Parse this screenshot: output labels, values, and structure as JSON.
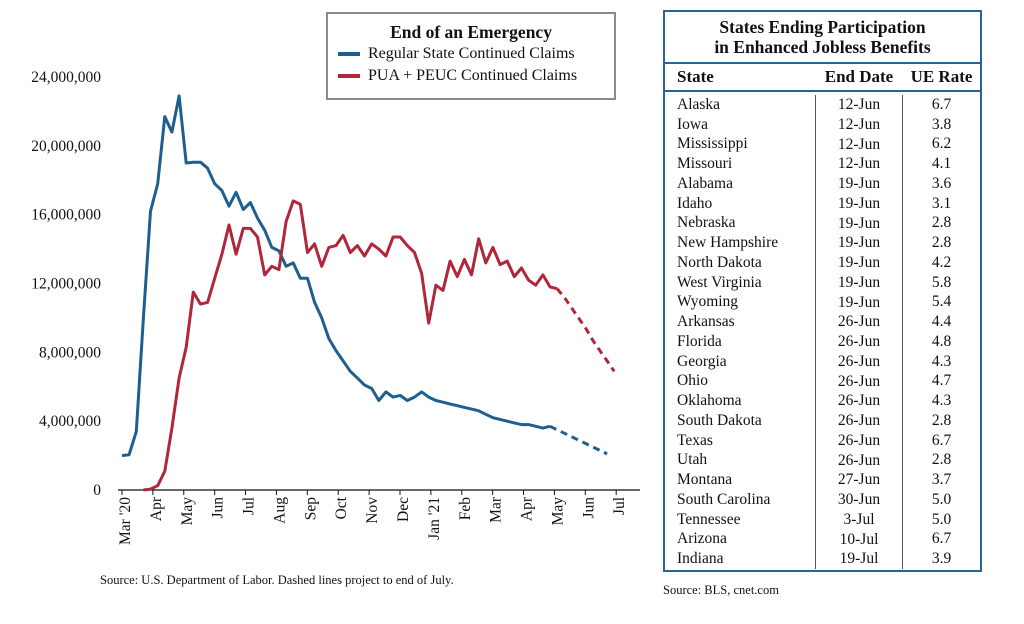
{
  "chart_data": {
    "type": "line",
    "title": "End of an Emergency",
    "x_labels": [
      "Mar '20",
      "Apr",
      "May",
      "Jun",
      "Jul",
      "Aug",
      "Sep",
      "Oct",
      "Nov",
      "Dec",
      "Jan '21",
      "Feb",
      "Mar",
      "Apr",
      "May",
      "Jun",
      "Jul"
    ],
    "y_ticks": [
      "0",
      "4,000,000",
      "8,000,000",
      "12,000,000",
      "16,000,000",
      "20,000,000",
      "24,000,000"
    ],
    "ylim": [
      0,
      24000000
    ],
    "legend_placement": "top",
    "series": [
      {
        "name": "Regular State Continued Claims",
        "color": "#1f5f8f",
        "values": [
          2000000,
          2050000,
          3400000,
          10000000,
          16200000,
          17800000,
          21700000,
          20800000,
          22900000,
          19000000,
          19050000,
          19050000,
          18700000,
          17800000,
          17400000,
          16500000,
          17300000,
          16300000,
          16700000,
          15800000,
          15100000,
          14100000,
          13900000,
          13000000,
          13200000,
          12300000,
          12300000,
          10900000,
          10000000,
          8800000,
          8100000,
          7500000,
          6900000,
          6500000,
          6100000,
          5900000,
          5200000,
          5700000,
          5400000,
          5500000,
          5200000,
          5400000,
          5700000,
          5400000,
          5200000,
          5100000,
          5000000,
          4900000,
          4800000,
          4700000,
          4600000,
          4400000,
          4200000,
          4100000,
          4000000,
          3900000,
          3800000,
          3800000,
          3700000,
          3600000,
          3700000
        ],
        "projection": [
          3700000,
          3500000,
          3300000,
          3100000,
          2900000,
          2700000,
          2500000,
          2300000,
          2100000
        ]
      },
      {
        "name": "PUA + PEUC Continued Claims",
        "color": "#b0263a",
        "start_index": 3,
        "values": [
          0,
          50000,
          250000,
          1100000,
          3600000,
          6500000,
          8300000,
          11500000,
          10800000,
          10900000,
          12300000,
          13700000,
          15400000,
          13700000,
          15200000,
          15200000,
          14700000,
          12500000,
          13000000,
          12800000,
          15600000,
          16800000,
          16600000,
          13800000,
          14300000,
          13000000,
          14100000,
          14200000,
          14800000,
          13800000,
          14200000,
          13600000,
          14300000,
          14000000,
          13600000,
          14700000,
          14700000,
          14200000,
          13800000,
          12600000,
          9700000,
          11900000,
          11600000,
          13300000,
          12400000,
          13400000,
          12500000,
          14600000,
          13200000,
          14100000,
          13100000,
          13300000,
          12400000,
          12900000,
          12200000,
          11900000,
          12500000,
          11800000,
          11700000
        ],
        "projection": [
          11700000,
          11200000,
          10600000,
          10000000,
          9400000,
          8700000,
          8100000,
          7500000,
          6900000
        ]
      }
    ]
  },
  "legend": {
    "title": "End of an Emergency",
    "items": [
      {
        "label": "Regular State Continued Claims",
        "color": "#1f5f8f"
      },
      {
        "label": "PUA + PEUC Continued Claims",
        "color": "#b0263a"
      }
    ]
  },
  "chart_source": "Source: U.S. Department of Labor. Dashed lines project to end of July.",
  "table": {
    "title_line1": "States Ending Participation",
    "title_line2": "in Enhanced Jobless Benefits",
    "headers": {
      "state": "State",
      "end_date": "End Date",
      "ue_rate": "UE Rate"
    },
    "rows": [
      {
        "state": "Alaska",
        "end_date": "12-Jun",
        "ue_rate": "6.7"
      },
      {
        "state": "Iowa",
        "end_date": "12-Jun",
        "ue_rate": "3.8"
      },
      {
        "state": "Mississippi",
        "end_date": "12-Jun",
        "ue_rate": "6.2"
      },
      {
        "state": "Missouri",
        "end_date": "12-Jun",
        "ue_rate": "4.1"
      },
      {
        "state": "Alabama",
        "end_date": "19-Jun",
        "ue_rate": "3.6"
      },
      {
        "state": "Idaho",
        "end_date": "19-Jun",
        "ue_rate": "3.1"
      },
      {
        "state": "Nebraska",
        "end_date": "19-Jun",
        "ue_rate": "2.8"
      },
      {
        "state": "New Hampshire",
        "end_date": "19-Jun",
        "ue_rate": "2.8"
      },
      {
        "state": "North Dakota",
        "end_date": "19-Jun",
        "ue_rate": "4.2"
      },
      {
        "state": "West Virginia",
        "end_date": "19-Jun",
        "ue_rate": "5.8"
      },
      {
        "state": "Wyoming",
        "end_date": "19-Jun",
        "ue_rate": "5.4"
      },
      {
        "state": "Arkansas",
        "end_date": "26-Jun",
        "ue_rate": "4.4"
      },
      {
        "state": "Florida",
        "end_date": "26-Jun",
        "ue_rate": "4.8"
      },
      {
        "state": "Georgia",
        "end_date": "26-Jun",
        "ue_rate": "4.3"
      },
      {
        "state": "Ohio",
        "end_date": "26-Jun",
        "ue_rate": "4.7"
      },
      {
        "state": "Oklahoma",
        "end_date": "26-Jun",
        "ue_rate": "4.3"
      },
      {
        "state": "South Dakota",
        "end_date": "26-Jun",
        "ue_rate": "2.8"
      },
      {
        "state": "Texas",
        "end_date": "26-Jun",
        "ue_rate": "6.7"
      },
      {
        "state": "Utah",
        "end_date": "26-Jun",
        "ue_rate": "2.8"
      },
      {
        "state": "Montana",
        "end_date": "27-Jun",
        "ue_rate": "3.7"
      },
      {
        "state": "South Carolina",
        "end_date": "30-Jun",
        "ue_rate": "5.0"
      },
      {
        "state": "Tennessee",
        "end_date": "3-Jul",
        "ue_rate": "5.0"
      },
      {
        "state": "Arizona",
        "end_date": "10-Jul",
        "ue_rate": "6.7"
      },
      {
        "state": "Indiana",
        "end_date": "19-Jul",
        "ue_rate": "3.9"
      }
    ]
  },
  "table_source": "Source:  BLS, cnet.com"
}
